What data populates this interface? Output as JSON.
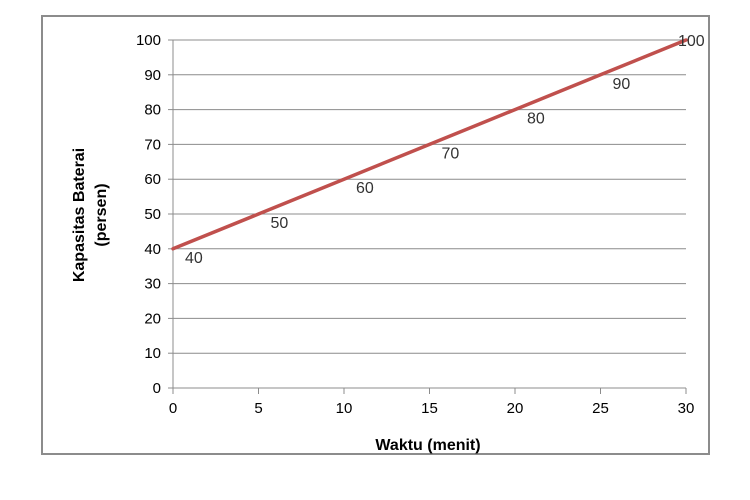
{
  "chart_data": {
    "type": "line",
    "title": "",
    "xlabel": "Waktu (menit)",
    "ylabel_lines": [
      "Kapasitas Baterai",
      "(persen)"
    ],
    "xlim": [
      0,
      30
    ],
    "ylim": [
      0,
      100
    ],
    "x_ticks": [
      0,
      5,
      10,
      15,
      20,
      25,
      30
    ],
    "y_ticks": [
      0,
      10,
      20,
      30,
      40,
      50,
      60,
      70,
      80,
      90,
      100
    ],
    "grid": "horizontal",
    "legend": "none",
    "line_color": "#c0504d",
    "series": [
      {
        "x": [
          0,
          5,
          10,
          15,
          20,
          25,
          30
        ],
        "values": [
          40,
          50,
          60,
          70,
          80,
          90,
          100
        ],
        "data_labels": [
          "40",
          "50",
          "60",
          "70",
          "80",
          "90",
          "100"
        ]
      }
    ]
  }
}
